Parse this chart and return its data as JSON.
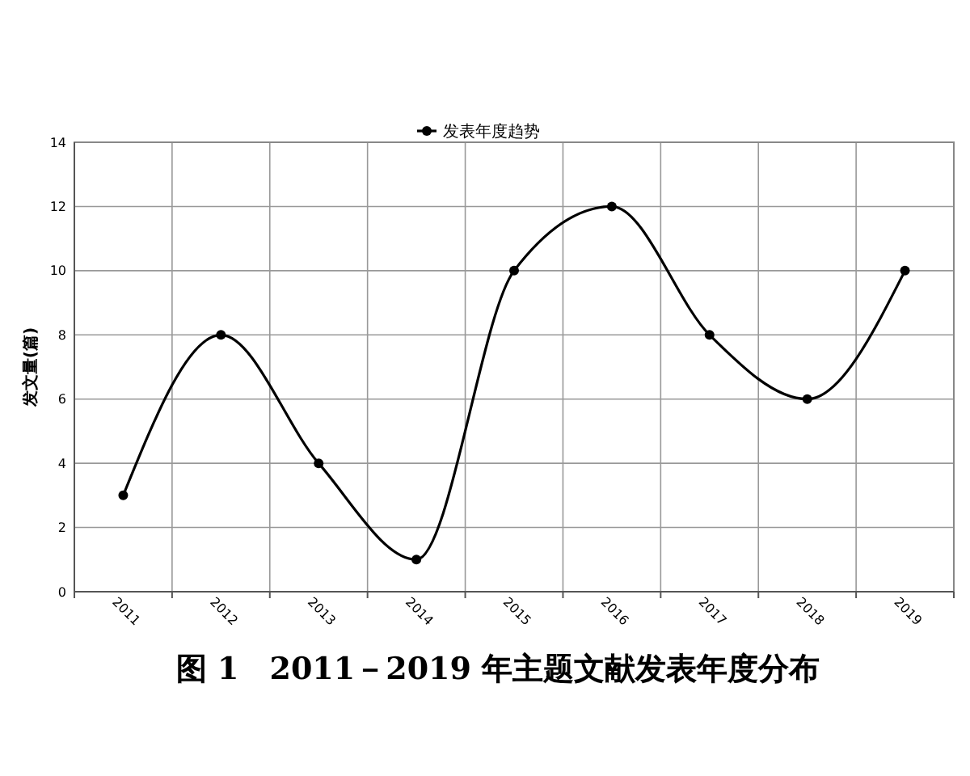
{
  "chart_data": {
    "type": "line",
    "title": "图 1　2011－2019 年主题文献发表年度分布",
    "ylabel": "发文量(篇)",
    "categories": [
      "2011",
      "2012",
      "2013",
      "2014",
      "2015",
      "2016",
      "2017",
      "2018",
      "2019"
    ],
    "series": [
      {
        "name": "发表年度趋势",
        "color": "#000000",
        "values": [
          3,
          8,
          4,
          1,
          10,
          12,
          8,
          6,
          10
        ]
      }
    ],
    "ylim": [
      0,
      14
    ],
    "yticks": [
      0,
      2,
      4,
      6,
      8,
      10,
      12,
      14
    ],
    "grid": true,
    "legend": "top",
    "marker": "circle",
    "line_style": "solid"
  }
}
